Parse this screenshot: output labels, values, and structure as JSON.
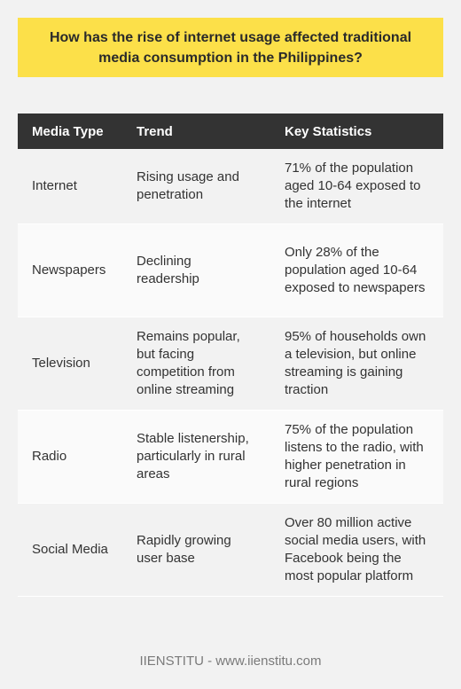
{
  "question": "How has the rise of internet usage affected traditional media consumption in the Philippines?",
  "table": {
    "headers": [
      "Media Type",
      "Trend",
      "Key Statistics"
    ],
    "rows": [
      {
        "media_type": "Internet",
        "trend": "Rising usage and penetration",
        "stats": "71% of the population aged 10-64 exposed to the internet"
      },
      {
        "media_type": "Newspapers",
        "trend": "Declining readership",
        "stats": "Only 28% of the population aged 10-64 exposed to newspapers"
      },
      {
        "media_type": "Television",
        "trend": "Remains popular, but facing competition from online streaming",
        "stats": "95% of households own a television, but online streaming is gaining traction"
      },
      {
        "media_type": "Radio",
        "trend": "Stable listenership, particularly in rural areas",
        "stats": "75% of the population listens to the radio, with higher penetration in rural regions"
      },
      {
        "media_type": "Social Media",
        "trend": "Rapidly growing user base",
        "stats": "Over 80 million active social media users, with Facebook being the most popular platform"
      }
    ]
  },
  "footer": "IIENSTITU - www.iienstitu.com",
  "colors": {
    "question_bg": "#fce049",
    "header_bg": "#333333",
    "page_bg": "#f2f2f2"
  }
}
